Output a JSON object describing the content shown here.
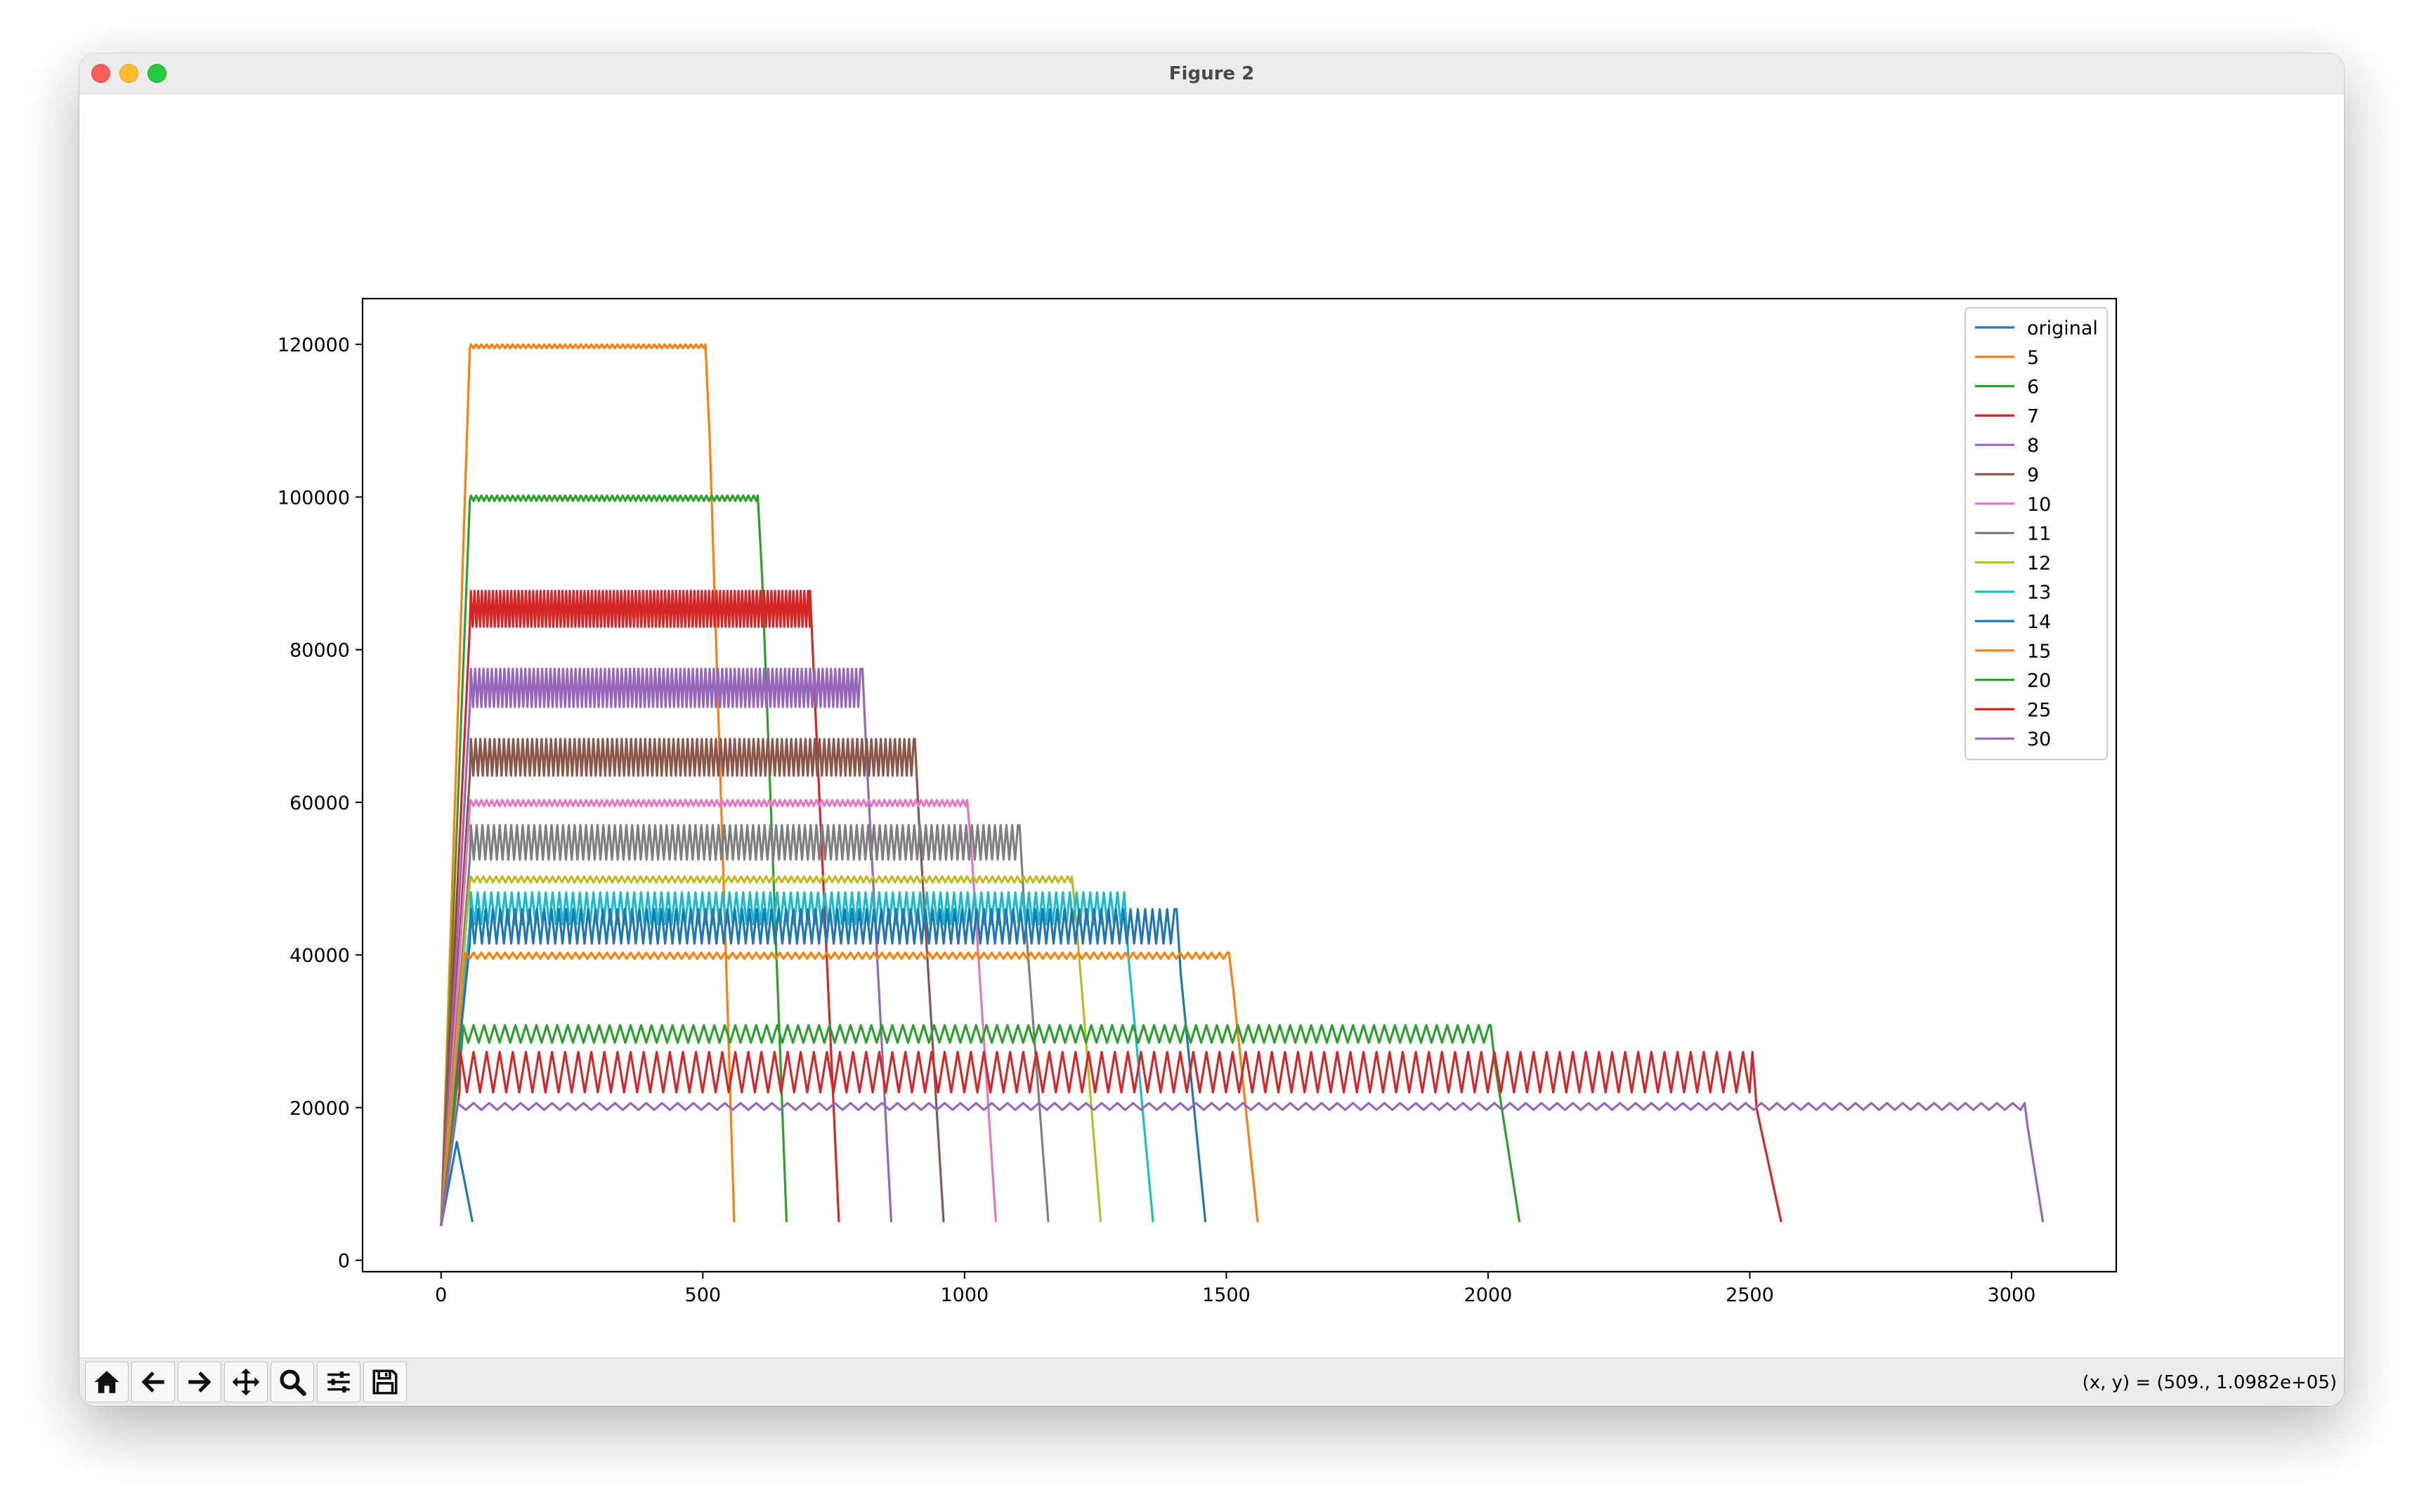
{
  "window": {
    "title": "Figure 2"
  },
  "toolbar": {
    "buttons": [
      {
        "icon": "home-icon"
      },
      {
        "icon": "back-arrow-icon"
      },
      {
        "icon": "forward-arrow-icon"
      },
      {
        "icon": "pan-icon"
      },
      {
        "icon": "zoom-icon"
      },
      {
        "icon": "subplots-icon"
      },
      {
        "icon": "save-icon"
      }
    ],
    "coords_text": "(x, y) = (509., 1.0982e+05)"
  },
  "chart_data": {
    "type": "line",
    "title": "",
    "xlabel": "",
    "ylabel": "",
    "xlim": [
      -150,
      3200
    ],
    "ylim": [
      -1500,
      126000
    ],
    "xticks": [
      0,
      500,
      1000,
      1500,
      2000,
      2500,
      3000
    ],
    "yticks": [
      0,
      20000,
      40000,
      60000,
      80000,
      100000,
      120000
    ],
    "grid": false,
    "legend_position": "top-right",
    "series": [
      {
        "name": "original",
        "color": "#1f77b4",
        "start": 0,
        "rise_end": 30,
        "level_low": 15500,
        "level_high": 15500,
        "plateau_end": 30,
        "end": 60,
        "end_value": 5000,
        "period": 0
      },
      {
        "name": "5",
        "color": "#ff7f0e",
        "start": 0,
        "rise_end": 55,
        "level_low": 119500,
        "level_high": 120000,
        "plateau_end": 505,
        "end": 560,
        "end_value": 5000,
        "period": 10
      },
      {
        "name": "6",
        "color": "#2ca02c",
        "start": 0,
        "rise_end": 55,
        "level_low": 99500,
        "level_high": 100200,
        "plateau_end": 605,
        "end": 660,
        "end_value": 5000,
        "period": 10
      },
      {
        "name": "7",
        "color": "#d62728",
        "start": 0,
        "rise_end": 55,
        "level_low": 83000,
        "level_high": 87700,
        "plateau_end": 705,
        "end": 760,
        "end_value": 5000,
        "period": 7
      },
      {
        "name": "8",
        "color": "#9467bd",
        "start": 0,
        "rise_end": 55,
        "level_low": 72500,
        "level_high": 77500,
        "plateau_end": 805,
        "end": 860,
        "end_value": 5000,
        "period": 8
      },
      {
        "name": "9",
        "color": "#8c564b",
        "start": 0,
        "rise_end": 55,
        "level_low": 63500,
        "level_high": 68300,
        "plateau_end": 905,
        "end": 960,
        "end_value": 5000,
        "period": 9
      },
      {
        "name": "10",
        "color": "#e377c2",
        "start": 0,
        "rise_end": 55,
        "level_low": 59500,
        "level_high": 60300,
        "plateau_end": 1005,
        "end": 1060,
        "end_value": 5000,
        "period": 10
      },
      {
        "name": "11",
        "color": "#7f7f7f",
        "start": 0,
        "rise_end": 55,
        "level_low": 52500,
        "level_high": 57000,
        "plateau_end": 1105,
        "end": 1160,
        "end_value": 5000,
        "period": 11
      },
      {
        "name": "12",
        "color": "#bcbd22",
        "start": 0,
        "rise_end": 55,
        "level_low": 49500,
        "level_high": 50300,
        "plateau_end": 1205,
        "end": 1260,
        "end_value": 5000,
        "period": 12
      },
      {
        "name": "13",
        "color": "#17becf",
        "start": 0,
        "rise_end": 55,
        "level_low": 44000,
        "level_high": 48200,
        "plateau_end": 1305,
        "end": 1360,
        "end_value": 5000,
        "period": 13
      },
      {
        "name": "14",
        "color": "#1f77b4",
        "start": 0,
        "rise_end": 55,
        "level_low": 41500,
        "level_high": 46000,
        "plateau_end": 1405,
        "end": 1460,
        "end_value": 5000,
        "period": 14
      },
      {
        "name": "15",
        "color": "#ff7f0e",
        "start": 0,
        "rise_end": 45,
        "level_low": 39500,
        "level_high": 40300,
        "plateau_end": 1505,
        "end": 1560,
        "end_value": 5000,
        "period": 15
      },
      {
        "name": "20",
        "color": "#2ca02c",
        "start": 0,
        "rise_end": 40,
        "level_low": 28500,
        "level_high": 30800,
        "plateau_end": 2005,
        "end": 2060,
        "end_value": 5000,
        "period": 20
      },
      {
        "name": "25",
        "color": "#d62728",
        "start": 0,
        "rise_end": 35,
        "level_low": 22000,
        "level_high": 27300,
        "plateau_end": 2505,
        "end": 2560,
        "end_value": 5000,
        "period": 25
      },
      {
        "name": "30",
        "color": "#9467bd",
        "start": 0,
        "rise_end": 30,
        "level_low": 19700,
        "level_high": 20600,
        "plateau_end": 3025,
        "end": 3060,
        "end_value": 5000,
        "period": 30
      }
    ]
  }
}
